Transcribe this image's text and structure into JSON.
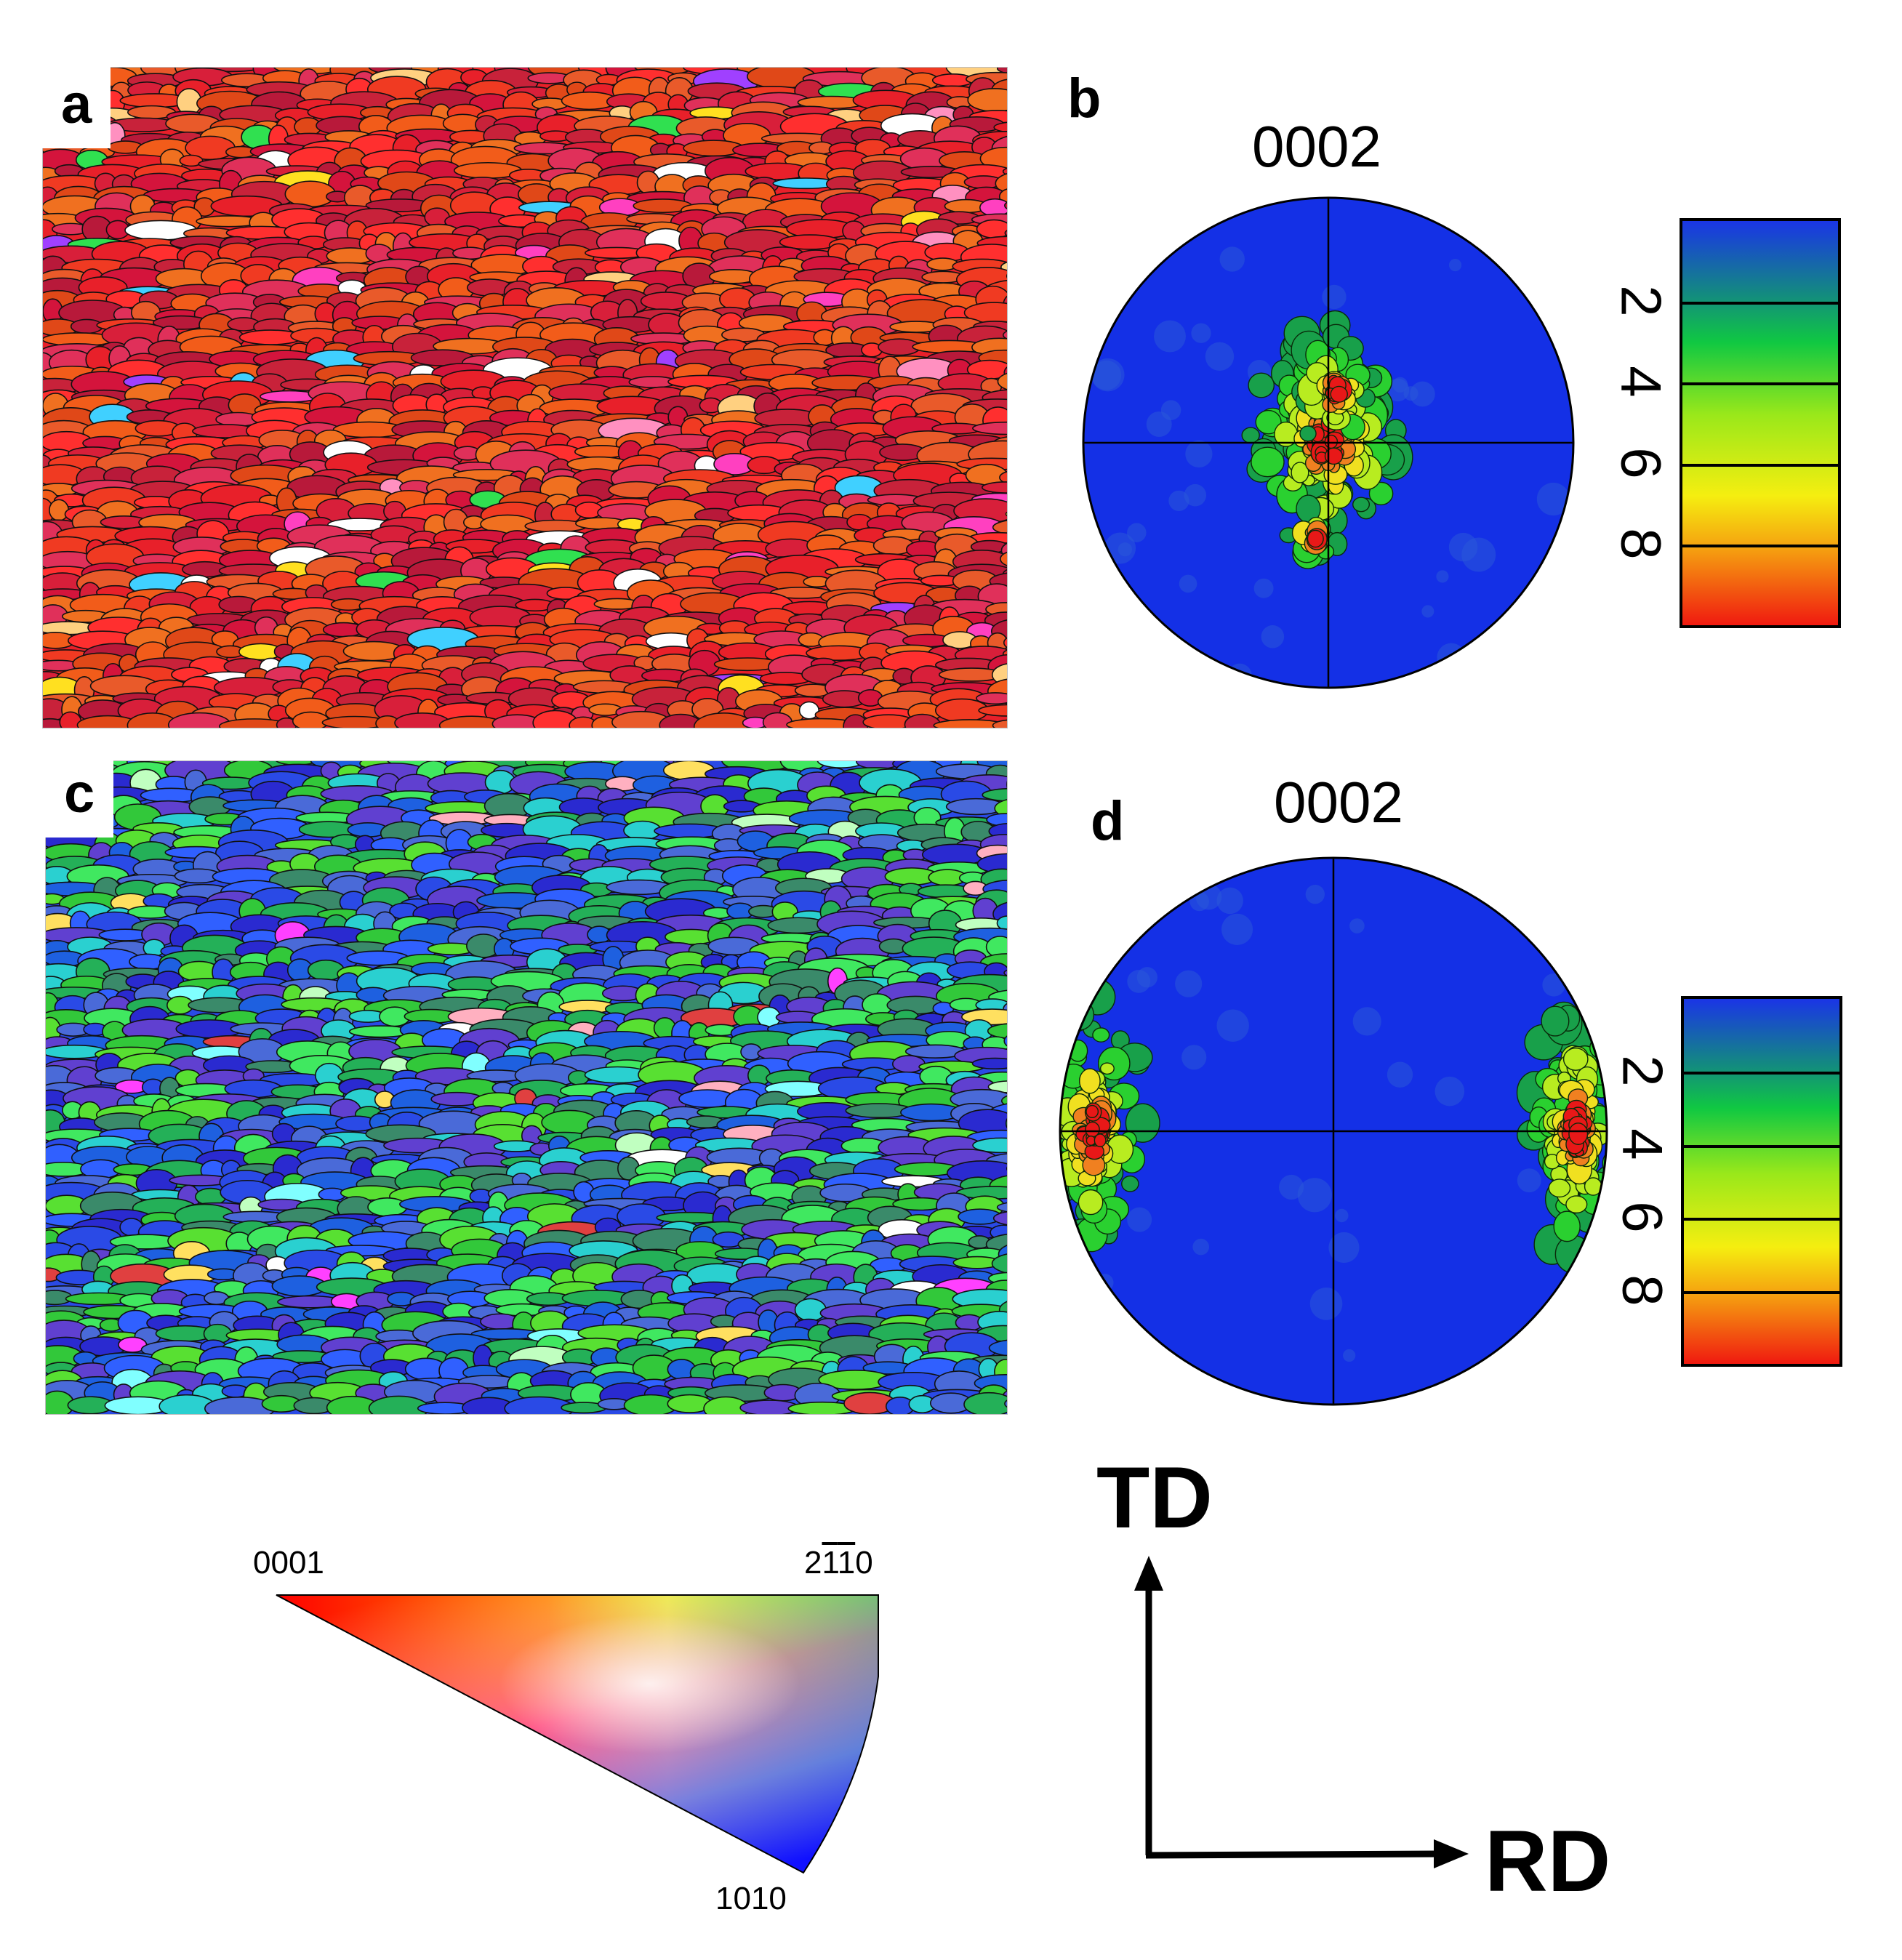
{
  "panels": {
    "a": {
      "label": "a"
    },
    "b": {
      "label": "b",
      "title": "0002"
    },
    "c": {
      "label": "c"
    },
    "d": {
      "label": "d",
      "title": "0002"
    }
  },
  "colorbar": {
    "ticks": [
      "2",
      "4",
      "6",
      "8"
    ],
    "colors": [
      "#1a35e6",
      "#138a80",
      "#10c842",
      "#9ae81a",
      "#f5ee10",
      "#f59a10",
      "#f01a10"
    ]
  },
  "ipf_key": {
    "corner_top_left": "0001",
    "corner_top_right": "2Ā1Ā0",
    "corner_bottom": "1010"
  },
  "sample_axes": {
    "vertical": "TD",
    "horizontal": "RD"
  },
  "colors": {
    "map_a_palette": [
      "#e8202a",
      "#d81f3a",
      "#f03a22",
      "#e04818",
      "#f25c1a",
      "#c8223a",
      "#e0305a",
      "#f07020",
      "#ff2f2f",
      "#d4143c",
      "#e95a2a",
      "#b8193a"
    ],
    "map_c_palette": [
      "#2a4ae6",
      "#3a8a6a",
      "#32c83a",
      "#58e032",
      "#2a2ad0",
      "#4a6ad8",
      "#2ad0d0",
      "#6040d0",
      "#24b058",
      "#1e60e0",
      "#40e860",
      "#3060ff"
    ],
    "pole_background": "#1430e6"
  }
}
